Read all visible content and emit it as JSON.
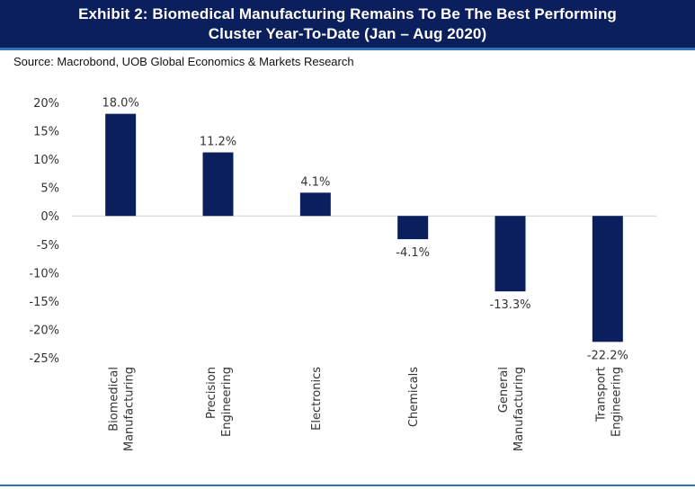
{
  "header": {
    "title_line1": "Exhibit 2: Biomedical Manufacturing Remains To Be The Best Performing",
    "title_line2": "Cluster Year-To-Date (Jan – Aug 2020)"
  },
  "source": "Source: Macrobond, UOB Global Economics & Markets Research",
  "colors": {
    "header_bg": "#0a1f5c",
    "bar": "#0b1f5c",
    "accent_rule": "#2e75b6"
  },
  "chart_data": {
    "type": "bar",
    "categories": [
      [
        "Biomedical",
        "Manufacturing"
      ],
      [
        "Precision",
        "Engineering"
      ],
      [
        "Electronics"
      ],
      [
        "Chemicals"
      ],
      [
        "General",
        "Manufacturing"
      ],
      [
        "Transport",
        "Engineering"
      ]
    ],
    "values": [
      18.0,
      11.2,
      4.1,
      -4.1,
      -13.3,
      -22.2
    ],
    "value_labels": [
      "18.0%",
      "11.2%",
      "4.1%",
      "-4.1%",
      "-13.3%",
      "-22.2%"
    ],
    "y_ticks": [
      20,
      15,
      10,
      5,
      0,
      -5,
      -10,
      -15,
      -20,
      -25
    ],
    "y_tick_labels": [
      "20%",
      "15%",
      "10%",
      "5%",
      "0%",
      "-5%",
      "-10%",
      "-15%",
      "-20%",
      "-25%"
    ],
    "ylim": [
      -25,
      20
    ],
    "grid": false,
    "legend": "none"
  }
}
